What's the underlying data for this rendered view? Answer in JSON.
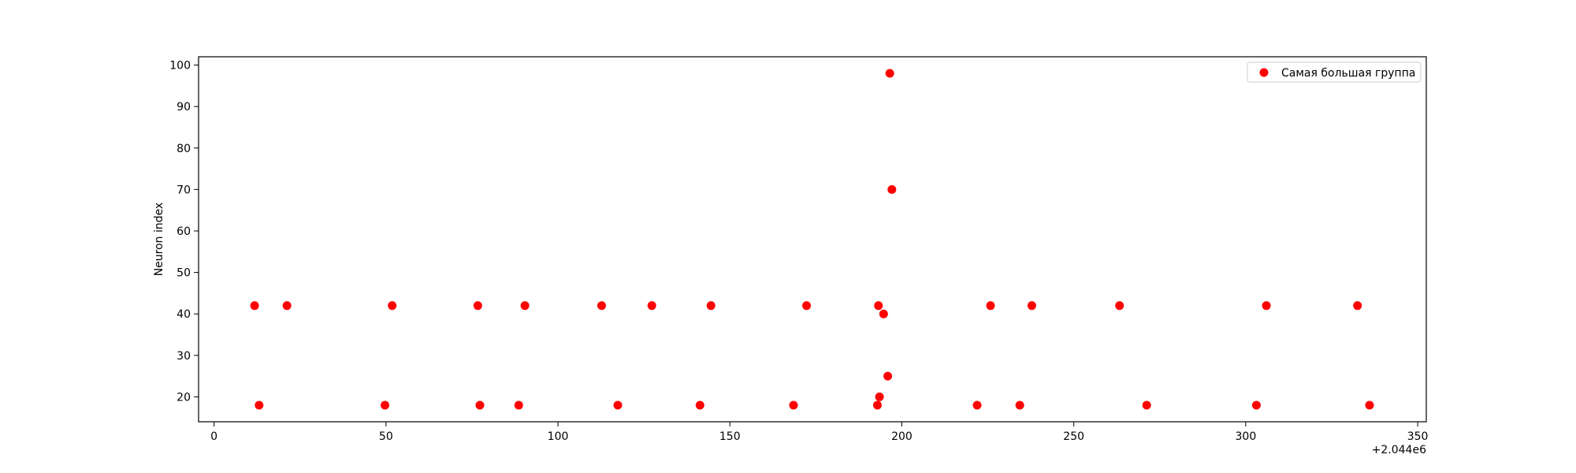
{
  "chart_data": {
    "type": "scatter",
    "title": "",
    "xlabel": "",
    "ylabel": "Neuron index",
    "x_offset_label": "+2.044e6",
    "xlim": [
      2043995.5,
      2044352.5
    ],
    "ylim": [
      14.0,
      102.0
    ],
    "x_ticks": [
      0,
      50,
      100,
      150,
      200,
      250,
      300,
      350
    ],
    "y_ticks": [
      20,
      30,
      40,
      50,
      60,
      70,
      80,
      90,
      100
    ],
    "grid": false,
    "legend": {
      "position": "top-right"
    },
    "series": [
      {
        "name": "Самая большая группа",
        "color": "#ff0000",
        "marker": "circle",
        "points": [
          {
            "x": 2044011.8,
            "y": 42
          },
          {
            "x": 2044013.1,
            "y": 18
          },
          {
            "x": 2044021.2,
            "y": 42
          },
          {
            "x": 2044049.7,
            "y": 18
          },
          {
            "x": 2044051.8,
            "y": 42
          },
          {
            "x": 2044076.7,
            "y": 42
          },
          {
            "x": 2044077.3,
            "y": 18
          },
          {
            "x": 2044088.6,
            "y": 18
          },
          {
            "x": 2044090.4,
            "y": 42
          },
          {
            "x": 2044112.7,
            "y": 42
          },
          {
            "x": 2044117.4,
            "y": 18
          },
          {
            "x": 2044127.3,
            "y": 42
          },
          {
            "x": 2044141.3,
            "y": 18
          },
          {
            "x": 2044144.5,
            "y": 42
          },
          {
            "x": 2044168.5,
            "y": 18
          },
          {
            "x": 2044172.3,
            "y": 42
          },
          {
            "x": 2044192.9,
            "y": 18
          },
          {
            "x": 2044193.2,
            "y": 42
          },
          {
            "x": 2044193.5,
            "y": 20
          },
          {
            "x": 2044194.7,
            "y": 40
          },
          {
            "x": 2044195.9,
            "y": 25
          },
          {
            "x": 2044196.5,
            "y": 98
          },
          {
            "x": 2044197.1,
            "y": 70
          },
          {
            "x": 2044221.9,
            "y": 18
          },
          {
            "x": 2044225.8,
            "y": 42
          },
          {
            "x": 2044234.3,
            "y": 18
          },
          {
            "x": 2044237.8,
            "y": 42
          },
          {
            "x": 2044263.3,
            "y": 42
          },
          {
            "x": 2044271.2,
            "y": 18
          },
          {
            "x": 2044303.1,
            "y": 18
          },
          {
            "x": 2044306.0,
            "y": 42
          },
          {
            "x": 2044332.5,
            "y": 42
          },
          {
            "x": 2044336.0,
            "y": 18
          }
        ]
      }
    ]
  }
}
